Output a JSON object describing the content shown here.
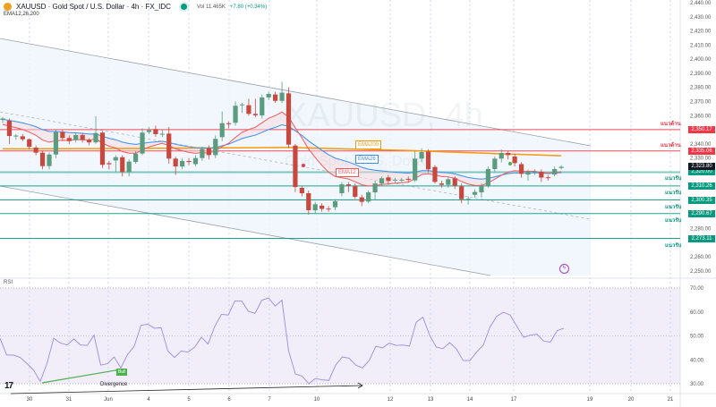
{
  "header": {
    "symbol": "XAUUSD · Gold Spot / U.S. Dollar · 4h · FX_IDC",
    "volume": "Vol 11.465K",
    "change": "+7.80 (+0.34%)",
    "indicators": "EMA12,26,200"
  },
  "watermark": {
    "line1": "XAUUSD, 4h",
    "line2": "Gold Spot / U.S. Dollar"
  },
  "colors": {
    "up": "#5b9c7e",
    "down": "#c8483e",
    "ema12": "#f0595c",
    "ema26": "#3b8ef0",
    "ema200": "#f59a0c",
    "resistance": "#f23645",
    "support": "#089981",
    "rsi": "#9b8ce0"
  },
  "price_axis": {
    "ticks": [
      "2,440.00",
      "2,430.00",
      "2,420.00",
      "2,410.00",
      "2,400.00",
      "2,390.00",
      "2,380.00",
      "2,370.00",
      "2,360.00",
      "2,340.00",
      "2,330.00",
      "2,280.00",
      "2,260.00",
      "2,250.00"
    ],
    "current_price": "2,323.80"
  },
  "levels": [
    {
      "type": "resistance",
      "label": "แนวต้าน",
      "price": 2350.17,
      "price_label": "2,350.17"
    },
    {
      "type": "resistance",
      "label": "แนวต้าน",
      "price": 2335.06,
      "price_label": "2,335.06"
    },
    {
      "type": "support",
      "label": "แนวรับ",
      "price": 2320.0,
      "price_label": "2,320.00"
    },
    {
      "type": "support",
      "label": "แนวรับ",
      "price": 2310.26,
      "price_label": "2,310.26"
    },
    {
      "type": "support",
      "label": "แนวรับ",
      "price": 2300.35,
      "price_label": "2,300.35"
    },
    {
      "type": "support",
      "label": "แนวรับ",
      "price": 2290.67,
      "price_label": "2,290.67"
    },
    {
      "type": "support",
      "label": "แนวรับ",
      "price": 2273.11,
      "price_label": "2,273.11"
    }
  ],
  "ema_tags": {
    "ema200": "EMA200",
    "ema26": "EMA26",
    "ema12": "EMA12"
  },
  "rsi": {
    "title": "RSI",
    "ticks": [
      "70.00",
      "60.00",
      "50.00",
      "40.00",
      "30.00"
    ],
    "bull_label": "Bull",
    "divergence_label": "Divergence"
  },
  "x_axis": [
    "30",
    "31",
    "Jun",
    "4",
    "5",
    "6",
    "7",
    "10",
    "12",
    "13",
    "14",
    "17",
    "19",
    "20",
    "21"
  ],
  "chart_data": {
    "type": "candlestick",
    "title": "XAUUSD 4h",
    "ylim": [
      2250,
      2440
    ],
    "candles": [
      [
        2357,
        2359,
        2355,
        2358
      ],
      [
        2356.4,
        2358,
        2340,
        2345.6
      ],
      [
        2345.6,
        2347,
        2343,
        2345.9
      ],
      [
        2345.4,
        2347,
        2342,
        2343.3
      ],
      [
        2343.3,
        2344,
        2336,
        2338
      ],
      [
        2337.4,
        2339,
        2332,
        2333.8
      ],
      [
        2333.8,
        2335,
        2322,
        2324.3
      ],
      [
        2324.3,
        2334,
        2322,
        2332.5
      ],
      [
        2332.5,
        2350,
        2330,
        2348.4
      ],
      [
        2348.4,
        2350,
        2342,
        2344.2
      ],
      [
        2344.2,
        2346,
        2340,
        2342
      ],
      [
        2342.7,
        2348,
        2341,
        2346.3
      ],
      [
        2346.3,
        2348,
        2341,
        2342.7
      ],
      [
        2342.7,
        2344,
        2339,
        2341.1
      ],
      [
        2341.1,
        2359.6,
        2340,
        2347.7
      ],
      [
        2348,
        2349,
        2323,
        2325.2
      ],
      [
        2326.4,
        2328,
        2322,
        2325.6
      ],
      [
        2328.3,
        2332,
        2320,
        2330.6
      ],
      [
        2330.6,
        2332,
        2317,
        2320.1
      ],
      [
        2320.1,
        2329,
        2317,
        2327.5
      ],
      [
        2327.3,
        2335,
        2326,
        2333.2
      ],
      [
        2333.2,
        2351,
        2332,
        2348
      ],
      [
        2348.4,
        2352,
        2347,
        2349.7
      ],
      [
        2350.5,
        2353,
        2345,
        2346.9
      ],
      [
        2346.8,
        2350,
        2345,
        2347.2
      ],
      [
        2347.3,
        2352,
        2326,
        2329.6
      ],
      [
        2329.6,
        2331,
        2318,
        2324.1
      ],
      [
        2324,
        2330,
        2322,
        2327.9
      ],
      [
        2327.9,
        2330,
        2325,
        2327.2
      ],
      [
        2325.7,
        2332,
        2324,
        2330
      ],
      [
        2330,
        2338,
        2328,
        2336.4
      ],
      [
        2336.8,
        2339,
        2329,
        2332.1
      ],
      [
        2332.1,
        2346,
        2330,
        2343.6
      ],
      [
        2344.8,
        2363,
        2342,
        2354.7
      ],
      [
        2354.7,
        2356,
        2351,
        2354
      ],
      [
        2355,
        2370,
        2353,
        2367
      ],
      [
        2367.6,
        2369,
        2362,
        2368
      ],
      [
        2367.4,
        2372,
        2360,
        2361.3
      ],
      [
        2361.3,
        2372,
        2359,
        2360.3
      ],
      [
        2360.2,
        2375,
        2358,
        2372.9
      ],
      [
        2372.9,
        2377,
        2371,
        2375.4
      ],
      [
        2375,
        2377,
        2369,
        2370.5
      ],
      [
        2370.5,
        2384,
        2369,
        2376.3
      ],
      [
        2375.8,
        2380,
        2337,
        2339.5
      ],
      [
        2338.8,
        2340,
        2306,
        2309.5
      ],
      [
        2308.9,
        2310,
        2303,
        2305.1
      ],
      [
        2305.1,
        2307,
        2290,
        2293.1
      ],
      [
        2293,
        2299,
        2291,
        2297.3
      ],
      [
        2296.3,
        2298,
        2292,
        2294
      ],
      [
        2294.2,
        2296,
        2292,
        2293.8
      ],
      [
        2295.2,
        2301,
        2293,
        2299.4
      ],
      [
        2305.1,
        2313,
        2303,
        2311.4
      ],
      [
        2311.4,
        2313,
        2306,
        2310.5
      ],
      [
        2310,
        2312,
        2301,
        2302.6
      ],
      [
        2302.2,
        2304,
        2296,
        2299
      ],
      [
        2299.2,
        2307,
        2298,
        2305.7
      ],
      [
        2305.7,
        2314,
        2300,
        2312
      ],
      [
        2312,
        2317,
        2310,
        2315.7
      ],
      [
        2316.3,
        2318,
        2311,
        2313.8
      ],
      [
        2314.3,
        2316,
        2312,
        2314.7
      ],
      [
        2314.4,
        2316,
        2313,
        2314.7
      ],
      [
        2315.3,
        2317,
        2313,
        2314.6
      ],
      [
        2314.2,
        2335,
        2313,
        2329.6
      ],
      [
        2329.6,
        2337,
        2327,
        2334.2
      ],
      [
        2334.6,
        2336,
        2320,
        2322
      ],
      [
        2323.7,
        2325,
        2312,
        2313.1
      ],
      [
        2312,
        2314,
        2309,
        2311
      ],
      [
        2311,
        2317,
        2309,
        2315
      ],
      [
        2315.7,
        2317,
        2308,
        2310.5
      ],
      [
        2310,
        2312,
        2298,
        2300.9
      ],
      [
        2300.6,
        2303,
        2297,
        2301.1
      ],
      [
        2304,
        2308,
        2302,
        2306
      ],
      [
        2305.7,
        2312,
        2302,
        2310
      ],
      [
        2310,
        2324,
        2309,
        2322.2
      ],
      [
        2322.2,
        2331,
        2320,
        2329.6
      ],
      [
        2329.6,
        2336,
        2327,
        2333.6
      ],
      [
        2333.6,
        2335,
        2329,
        2332.1
      ],
      [
        2331.1,
        2333,
        2324,
        2326.4
      ],
      [
        2325.7,
        2327,
        2316,
        2318.8
      ],
      [
        2318.3,
        2322,
        2314,
        2320.3
      ],
      [
        2320.2,
        2322,
        2318,
        2320.4
      ],
      [
        2320.3,
        2322,
        2313,
        2316.2
      ],
      [
        2316.4,
        2318,
        2314,
        2315.8
      ],
      [
        2318.3,
        2324,
        2317,
        2322.2
      ],
      [
        2323,
        2325,
        2322,
        2323.8
      ]
    ],
    "ema200": [
      [
        0,
        2336.5
      ],
      [
        20,
        2336.8
      ],
      [
        43,
        2337.5
      ],
      [
        60,
        2335.5
      ],
      [
        75,
        2333
      ],
      [
        85,
        2331.5
      ]
    ],
    "rsi_values": [
      49,
      42,
      42,
      41,
      38.5,
      35.7,
      31,
      38.5,
      49,
      47,
      46.2,
      48.7,
      46.2,
      46,
      50.3,
      37.8,
      38.4,
      41.2,
      36.6,
      42.2,
      45.7,
      54.4,
      54.9,
      53.2,
      53.4,
      43.7,
      41,
      43.7,
      43.2,
      45.3,
      49.4,
      46.6,
      54,
      59,
      58.7,
      64.6,
      64.6,
      60.3,
      59.4,
      64.9,
      65.9,
      62.5,
      64.9,
      43.7,
      34.1,
      33.2,
      30,
      32.2,
      31.6,
      31.4,
      37.8,
      41.2,
      40.7,
      37.8,
      36.6,
      39.7,
      45.7,
      45,
      47,
      46,
      46.2,
      45.7,
      55.7,
      57.8,
      50.3,
      45.3,
      44.7,
      47.2,
      44.5,
      39.7,
      39.7,
      43.2,
      46.2,
      53.7,
      58.2,
      59.9,
      58.7,
      54,
      49.4,
      50.3,
      50.7,
      47.8,
      47.4,
      52.2,
      53.2
    ],
    "rsi_range": [
      30,
      70
    ]
  }
}
